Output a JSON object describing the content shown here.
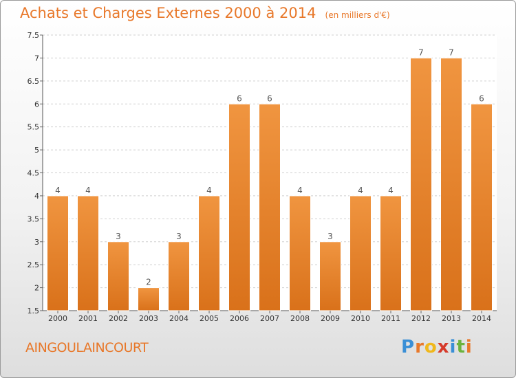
{
  "chart_data": {
    "type": "bar",
    "title": "Achats et Charges Externes 2000 à 2014",
    "subtitle": "(en milliers d'€)",
    "categories": [
      "2000",
      "2001",
      "2002",
      "2003",
      "2004",
      "2005",
      "2006",
      "2007",
      "2008",
      "2009",
      "2010",
      "2011",
      "2012",
      "2013",
      "2014"
    ],
    "values": [
      4,
      4,
      3,
      2,
      3,
      4,
      6,
      6,
      4,
      3,
      4,
      4,
      7,
      7,
      6
    ],
    "data_labels": [
      "4",
      "4",
      "3",
      "2",
      "3",
      "4",
      "6",
      "6",
      "4",
      "3",
      "4",
      "4",
      "7",
      "7",
      "6"
    ],
    "ylim": [
      1.5,
      7.5
    ],
    "yticks": [
      "1.5",
      "2",
      "2.5",
      "3",
      "3.5",
      "4",
      "4.5",
      "5",
      "5.5",
      "6",
      "6.5",
      "7",
      "7.5"
    ],
    "grid": true,
    "bar_color": "#f09540",
    "bar_color_dark": "#d9711a",
    "label_color": "#555555"
  },
  "footer": {
    "commune": "AINGOULAINCOURT",
    "logo_letters": [
      {
        "ch": "P",
        "color": "#3a8fd6"
      },
      {
        "ch": "r",
        "color": "#e8782a"
      },
      {
        "ch": "o",
        "color": "#f0b81c"
      },
      {
        "ch": "x",
        "color": "#d63a2a"
      },
      {
        "ch": "i",
        "color": "#3a8fd6"
      },
      {
        "ch": "t",
        "color": "#6cb33e"
      },
      {
        "ch": "i",
        "color": "#e8782a"
      }
    ]
  },
  "accent_color": "#e8782a"
}
